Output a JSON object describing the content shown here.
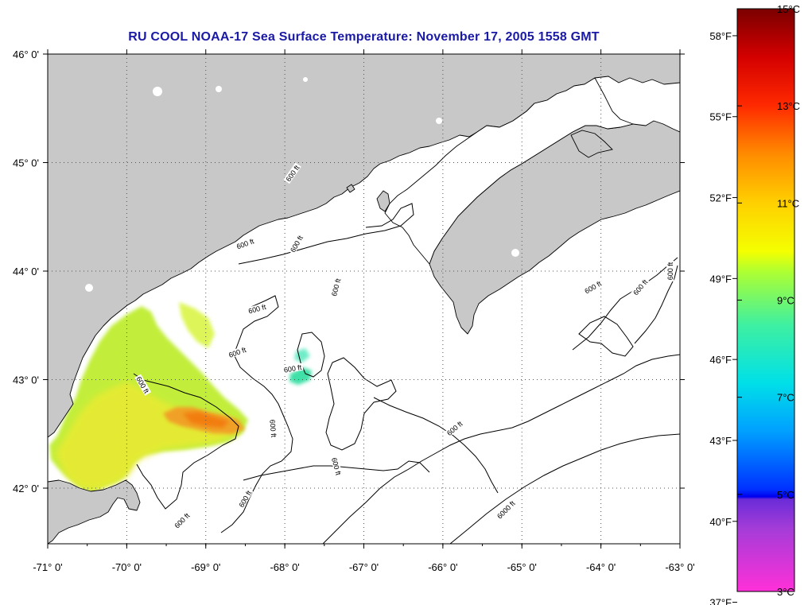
{
  "title": "RU COOL  NOAA-17  Sea Surface Temperature:  November 17, 2005 1558 GMT",
  "map": {
    "lon_range": [
      -71,
      -63
    ],
    "lat_range": [
      41.5,
      46.1
    ],
    "lon_ticks": [
      {
        "value": -71,
        "label": "-71° 0'"
      },
      {
        "value": -70,
        "label": "-70° 0'"
      },
      {
        "value": -69,
        "label": "-69° 0'"
      },
      {
        "value": -68,
        "label": "-68° 0'"
      },
      {
        "value": -67,
        "label": "-67° 0'"
      },
      {
        "value": -66,
        "label": "-66° 0'"
      },
      {
        "value": -65,
        "label": "-65° 0'"
      },
      {
        "value": -64,
        "label": "-64° 0'"
      },
      {
        "value": -63,
        "label": "-63° 0'"
      }
    ],
    "lat_ticks": [
      {
        "value": 46,
        "label": "46° 0'"
      },
      {
        "value": 45,
        "label": "45° 0'"
      },
      {
        "value": 44,
        "label": "44° 0'"
      },
      {
        "value": 43,
        "label": "43° 0'"
      },
      {
        "value": 42,
        "label": "42° 0'"
      }
    ],
    "grid": true,
    "land_color": "#c8c8c8",
    "no_data_color": "#ffffff",
    "contour_labels": [
      {
        "text": "600 ft",
        "lon": -68.5,
        "lat": 44.25,
        "angle": -20
      },
      {
        "text": "600 ft",
        "lon": -67.85,
        "lat": 44.25,
        "angle": -60
      },
      {
        "text": "600 ft",
        "lon": -67.35,
        "lat": 43.85,
        "angle": -75
      },
      {
        "text": "600 ft",
        "lon": -68.35,
        "lat": 43.65,
        "angle": -15
      },
      {
        "text": "600 ft",
        "lon": -68.6,
        "lat": 43.25,
        "angle": -20
      },
      {
        "text": "600 ft",
        "lon": -67.9,
        "lat": 43.1,
        "angle": -10
      },
      {
        "text": "600 ft",
        "lon": -69.8,
        "lat": 42.95,
        "angle": 60
      },
      {
        "text": "600 ft",
        "lon": -68.15,
        "lat": 42.55,
        "angle": 85
      },
      {
        "text": "600 ft",
        "lon": -67.35,
        "lat": 42.2,
        "angle": 75
      },
      {
        "text": "600 ft",
        "lon": -65.85,
        "lat": 42.55,
        "angle": -40
      },
      {
        "text": "600 ft",
        "lon": -68.5,
        "lat": 41.9,
        "angle": -60
      },
      {
        "text": "600 ft",
        "lon": -69.3,
        "lat": 41.7,
        "angle": -45
      },
      {
        "text": "6000 ft",
        "lon": -65.2,
        "lat": 41.8,
        "angle": -45
      },
      {
        "text": "600 ft",
        "lon": -64.1,
        "lat": 43.85,
        "angle": -30
      },
      {
        "text": "600 ft",
        "lon": -63.5,
        "lat": 43.85,
        "angle": -50
      },
      {
        "text": "600 ft",
        "lon": -63.12,
        "lat": 44.0,
        "angle": -90
      },
      {
        "text": "600 ft",
        "lon": -67.9,
        "lat": 44.9,
        "angle": -55
      }
    ]
  },
  "sst": {
    "units_c": "°C",
    "units_f": "°F",
    "patches": [
      {
        "name": "coastal-plume",
        "color": "#c6f03a"
      },
      {
        "name": "warm-core",
        "color": "#f2a020"
      },
      {
        "name": "shelf-yellow",
        "color": "#ecec2e"
      },
      {
        "name": "cool-filament",
        "color": "#4fe6a0"
      }
    ]
  },
  "colorbar": {
    "min_c": 3,
    "max_c": 15,
    "celsius_labels": [
      {
        "value": 15,
        "label": "15°C"
      },
      {
        "value": 13,
        "label": "13°C"
      },
      {
        "value": 11,
        "label": "11°C"
      },
      {
        "value": 9,
        "label": "9°C"
      },
      {
        "value": 7,
        "label": "7°C"
      },
      {
        "value": 5,
        "label": "5°C"
      },
      {
        "value": 3,
        "label": "3°C"
      }
    ],
    "fahrenheit_labels": [
      {
        "value": 58,
        "label": "58°F"
      },
      {
        "value": 55,
        "label": "55°F"
      },
      {
        "value": 52,
        "label": "52°F"
      },
      {
        "value": 49,
        "label": "49°F"
      },
      {
        "value": 46,
        "label": "46°F"
      },
      {
        "value": 43,
        "label": "43°F"
      },
      {
        "value": 40,
        "label": "40°F"
      },
      {
        "value": 37,
        "label": "37°F"
      }
    ],
    "gradient_stops": [
      {
        "c": 15,
        "color": "#7a0000"
      },
      {
        "c": 14,
        "color": "#d40000"
      },
      {
        "c": 13,
        "color": "#ff2a00"
      },
      {
        "c": 12,
        "color": "#ff8c00"
      },
      {
        "c": 11,
        "color": "#ffd000"
      },
      {
        "c": 10,
        "color": "#f4ff00"
      },
      {
        "c": 9.6,
        "color": "#b0ff30"
      },
      {
        "c": 8.5,
        "color": "#3ff0a0"
      },
      {
        "c": 7.3,
        "color": "#00e0e8"
      },
      {
        "c": 6.3,
        "color": "#00a0ff"
      },
      {
        "c": 5.1,
        "color": "#0030ff"
      },
      {
        "c": 4.95,
        "color": "#0000ee"
      },
      {
        "c": 4.9,
        "color": "#6a2cd8"
      },
      {
        "c": 4.3,
        "color": "#a43cd8"
      },
      {
        "c": 3,
        "color": "#ff30d8"
      }
    ]
  }
}
